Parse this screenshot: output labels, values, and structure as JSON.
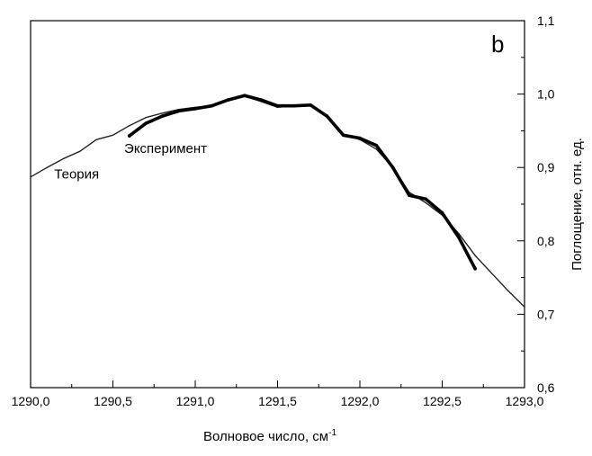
{
  "chart_data": {
    "type": "line",
    "panel_label": "b",
    "xlabel": "Волновое число, см",
    "xlabel_sup": "-1",
    "ylabel": "Поглощение, отн. ед.",
    "xlim": [
      1290.0,
      1293.0
    ],
    "ylim": [
      0.6,
      1.1
    ],
    "x_ticks": [
      1290.0,
      1290.5,
      1291.0,
      1291.5,
      1292.0,
      1292.5,
      1293.0
    ],
    "x_tick_labels": [
      "1290,0",
      "1290,5",
      "1291,0",
      "1291,5",
      "1292,0",
      "1292,5",
      "1293,0"
    ],
    "y_ticks": [
      0.6,
      0.7,
      0.8,
      0.9,
      1.0,
      1.1
    ],
    "y_tick_labels": [
      "0,6",
      "0,7",
      "0,8",
      "0,9",
      "1,0",
      "1,1"
    ],
    "y_axis_side": "right",
    "grid": false,
    "legend": "none",
    "series": [
      {
        "name": "Теория",
        "color": "#222222",
        "x": [
          1290.0,
          1290.1,
          1290.2,
          1290.3,
          1290.4,
          1290.5,
          1290.6,
          1290.7,
          1290.8,
          1290.9,
          1291.0,
          1291.1,
          1291.2,
          1291.3,
          1291.4,
          1291.5,
          1291.6,
          1291.7,
          1291.8,
          1291.9,
          1292.0,
          1292.1,
          1292.2,
          1292.3,
          1292.4,
          1292.5,
          1292.6,
          1292.7,
          1292.8,
          1292.9,
          1293.0
        ],
        "y": [
          0.887,
          0.9,
          0.912,
          0.922,
          0.938,
          0.944,
          0.957,
          0.968,
          0.974,
          0.979,
          0.982,
          0.984,
          0.991,
          0.997,
          0.99,
          0.982,
          0.984,
          0.985,
          0.97,
          0.945,
          0.938,
          0.925,
          0.9,
          0.866,
          0.852,
          0.835,
          0.81,
          0.78,
          0.756,
          0.732,
          0.71
        ]
      },
      {
        "name": "Эксперимент",
        "color": "#000000",
        "x": [
          1290.6,
          1290.7,
          1290.8,
          1290.9,
          1291.0,
          1291.1,
          1291.2,
          1291.3,
          1291.4,
          1291.5,
          1291.6,
          1291.7,
          1291.8,
          1291.9,
          1292.0,
          1292.1,
          1292.2,
          1292.3,
          1292.4,
          1292.5,
          1292.6,
          1292.7
        ],
        "y": [
          0.943,
          0.96,
          0.97,
          0.977,
          0.98,
          0.984,
          0.992,
          0.998,
          0.992,
          0.984,
          0.984,
          0.985,
          0.97,
          0.944,
          0.94,
          0.93,
          0.9,
          0.862,
          0.857,
          0.838,
          0.805,
          0.762
        ]
      }
    ],
    "annotations": [
      {
        "text": "Теория",
        "x": 1290.28,
        "y": 0.885
      },
      {
        "text": "Эксперимент",
        "x": 1290.82,
        "y": 0.92
      }
    ]
  }
}
